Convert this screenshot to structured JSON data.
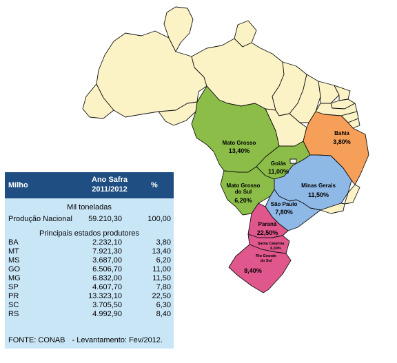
{
  "map": {
    "colors": {
      "default": "#fbf3c6",
      "green": "#8bbd48",
      "orange": "#f59f58",
      "blue": "#8eb8e6",
      "pink": "#e0578d",
      "border": "#111111"
    },
    "labels": {
      "mt_name": "Mato Grosso",
      "mt_pct": "13,40%",
      "go_name": "Goiás",
      "go_pct": "11,00%",
      "ms_name1": "Mato Grosso",
      "ms_name2": "do Sul",
      "ms_pct": "6,20%",
      "ba_name": "Bahia",
      "ba_pct": "3,80%",
      "mg_name": "Minas Gerais",
      "mg_pct": "11,50%",
      "sp_name": "São Paulo",
      "sp_pct": "7,80%",
      "pr_name": "Paraná",
      "pr_pct": "22,50%",
      "sc_name": "Santa Catarina",
      "sc_pct": "6,30%",
      "rs_name1": "Rio Grande",
      "rs_name2": "do Sul",
      "rs_pct": "8,40%"
    }
  },
  "table": {
    "header": {
      "milho": "Milho",
      "safra1": "Ano Safra",
      "safra2": "2011/2012",
      "pct": "%"
    },
    "unit": "Mil toneladas",
    "national": {
      "label": "Produção Nacional",
      "value": "59.210,30",
      "pct": "100,00"
    },
    "states_label": "Principais estados produtores",
    "rows": [
      {
        "uf": "BA",
        "value": "2.232,10",
        "pct": "3,80"
      },
      {
        "uf": "MT",
        "value": "7.921,30",
        "pct": "13,40"
      },
      {
        "uf": "MS",
        "value": "3.687,00",
        "pct": "6,20"
      },
      {
        "uf": "GO",
        "value": "6.506,70",
        "pct": "11,00"
      },
      {
        "uf": "MG",
        "value": "6.832,00",
        "pct": "11,50"
      },
      {
        "uf": "SP",
        "value": "4.607,70",
        "pct": "7,80"
      },
      {
        "uf": "PR",
        "value": "13.323,10",
        "pct": "22,50"
      },
      {
        "uf": "SC",
        "value": "3.705,50",
        "pct": "6,30"
      },
      {
        "uf": "RS",
        "value": "4.992,90",
        "pct": "8,40"
      }
    ],
    "source_a": "FONTE: CONAB",
    "source_b": "- Levantamento: Fev/2012."
  }
}
